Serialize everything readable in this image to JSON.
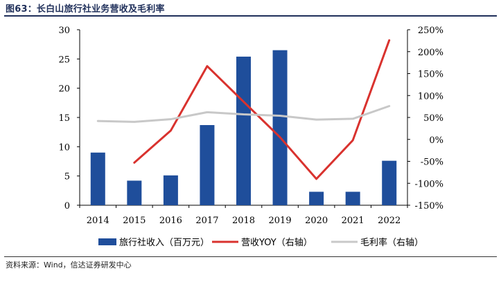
{
  "page": {
    "title": "图63：长白山旅行社业务营收及毛利率",
    "source": "资料来源：Wind，信达证券研发中心"
  },
  "chart_data": {
    "type": "bar",
    "categories": [
      "2014",
      "2015",
      "2016",
      "2017",
      "2018",
      "2019",
      "2020",
      "2021",
      "2022"
    ],
    "series": [
      {
        "name": "旅行社收入（百万元）",
        "type": "bar",
        "axis": "left",
        "color": "#1f4e9b",
        "values": [
          9.0,
          4.2,
          5.1,
          13.7,
          25.4,
          26.5,
          2.3,
          2.3,
          7.6
        ]
      },
      {
        "name": "营收YOY（右轴）",
        "type": "line",
        "axis": "right",
        "color": "#d9322e",
        "values": [
          null,
          -53,
          20,
          167,
          86,
          5,
          -90,
          -2,
          226
        ]
      },
      {
        "name": "毛利率（右轴）",
        "type": "line",
        "axis": "right",
        "color": "#c8c8c8",
        "values": [
          42,
          40,
          46,
          62,
          57,
          54,
          45,
          47,
          76
        ]
      }
    ],
    "left_axis": {
      "ylim": [
        0,
        30
      ],
      "ticks": [
        "0",
        "5",
        "10",
        "15",
        "20",
        "25",
        "30"
      ]
    },
    "right_axis": {
      "ylim": [
        -150,
        250
      ],
      "ticks": [
        "-150%",
        "-100%",
        "-50%",
        "0%",
        "50%",
        "100%",
        "150%",
        "200%",
        "250%"
      ]
    },
    "legend_position": "bottom",
    "grid": false
  }
}
